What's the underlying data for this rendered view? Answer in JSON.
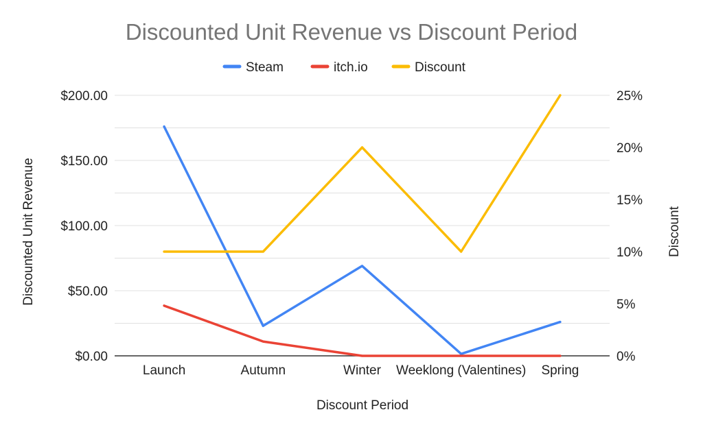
{
  "chart_data": {
    "type": "line",
    "title": "Discounted Unit Revenue vs Discount Period",
    "xlabel": "Discount Period",
    "ylabel": "Discounted Unit Revenue",
    "y2label": "Discount",
    "categories": [
      "Launch",
      "Autumn",
      "Winter",
      "Weeklong (Valentines)",
      "Spring"
    ],
    "series": [
      {
        "name": "Steam",
        "axis": "left",
        "color": "#4285f4",
        "values": [
          176,
          23,
          69,
          1.5,
          26
        ]
      },
      {
        "name": "itch.io",
        "axis": "left",
        "color": "#ea4335",
        "values": [
          38.5,
          11,
          0,
          0,
          0
        ]
      },
      {
        "name": "Discount",
        "axis": "right",
        "color": "#fbbc04",
        "values": [
          0.1,
          0.1,
          0.2,
          0.1,
          0.25
        ]
      }
    ],
    "ylim": [
      0,
      200
    ],
    "y2lim": [
      0,
      0.25
    ],
    "yticks": [
      "$0.00",
      "$50.00",
      "$100.00",
      "$150.00",
      "$200.00"
    ],
    "y2ticks": [
      "0%",
      "5%",
      "10%",
      "15%",
      "20%",
      "25%"
    ],
    "grid": true,
    "legend_position": "top"
  }
}
